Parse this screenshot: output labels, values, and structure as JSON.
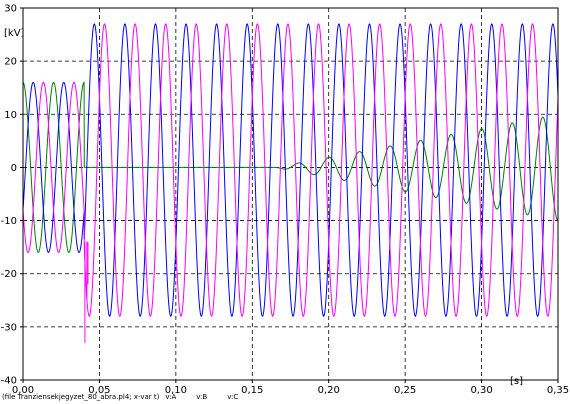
{
  "chart_data": {
    "type": "line",
    "xlabel": "[s]",
    "ylabel": "[kV]",
    "xlim": [
      0,
      0.35
    ],
    "ylim": [
      -40,
      30
    ],
    "xticks": [
      0.0,
      0.05,
      0.1,
      0.15,
      0.2,
      0.25,
      0.3,
      0.35
    ],
    "xtick_labels": [
      "0,00",
      "0,05",
      "0,10",
      "0,15",
      "0,20",
      "0,25",
      "0,30",
      "0,35"
    ],
    "yticks": [
      -40,
      -30,
      -20,
      -10,
      0,
      10,
      20,
      30
    ],
    "ytick_labels": [
      "-40",
      "-30",
      "-20",
      "-10",
      "0",
      "10",
      "20",
      "30"
    ],
    "grid": true,
    "footer": "(file Tranziensekjegyzet_80_abra.pl4; x-var t)",
    "frequency_hz": 50,
    "series": [
      {
        "name": "v:A",
        "color": "#008000",
        "phase_deg": 90,
        "segments": [
          {
            "t0": 0.0,
            "t1": 0.04,
            "amplitude": 16
          },
          {
            "t0": 0.04,
            "t1": 0.165,
            "amplitude": 0
          },
          {
            "t0": 0.165,
            "t1": 0.35,
            "amplitude_start": 0,
            "amplitude_end": 10
          }
        ]
      },
      {
        "name": "v:B",
        "color": "#0000ff",
        "phase_deg": -30,
        "segments": [
          {
            "t0": 0.0,
            "t1": 0.04,
            "amplitude": 16
          },
          {
            "t0": 0.04,
            "t1": 0.35,
            "offset": -0.5,
            "amplitude": 27.5
          }
        ]
      },
      {
        "name": "v:C",
        "color": "#ff00ff",
        "phase_deg": 210,
        "segments": [
          {
            "t0": 0.0,
            "t1": 0.04,
            "amplitude": 16
          },
          {
            "t0": 0.04,
            "t1": 0.35,
            "offset": -0.5,
            "amplitude": 27.5
          }
        ]
      }
    ],
    "transient_spikes": [
      {
        "t": 0.0405,
        "min": -33
      },
      {
        "t": 0.0418,
        "min": -25
      },
      {
        "t": 0.0425,
        "min": -22
      }
    ]
  }
}
